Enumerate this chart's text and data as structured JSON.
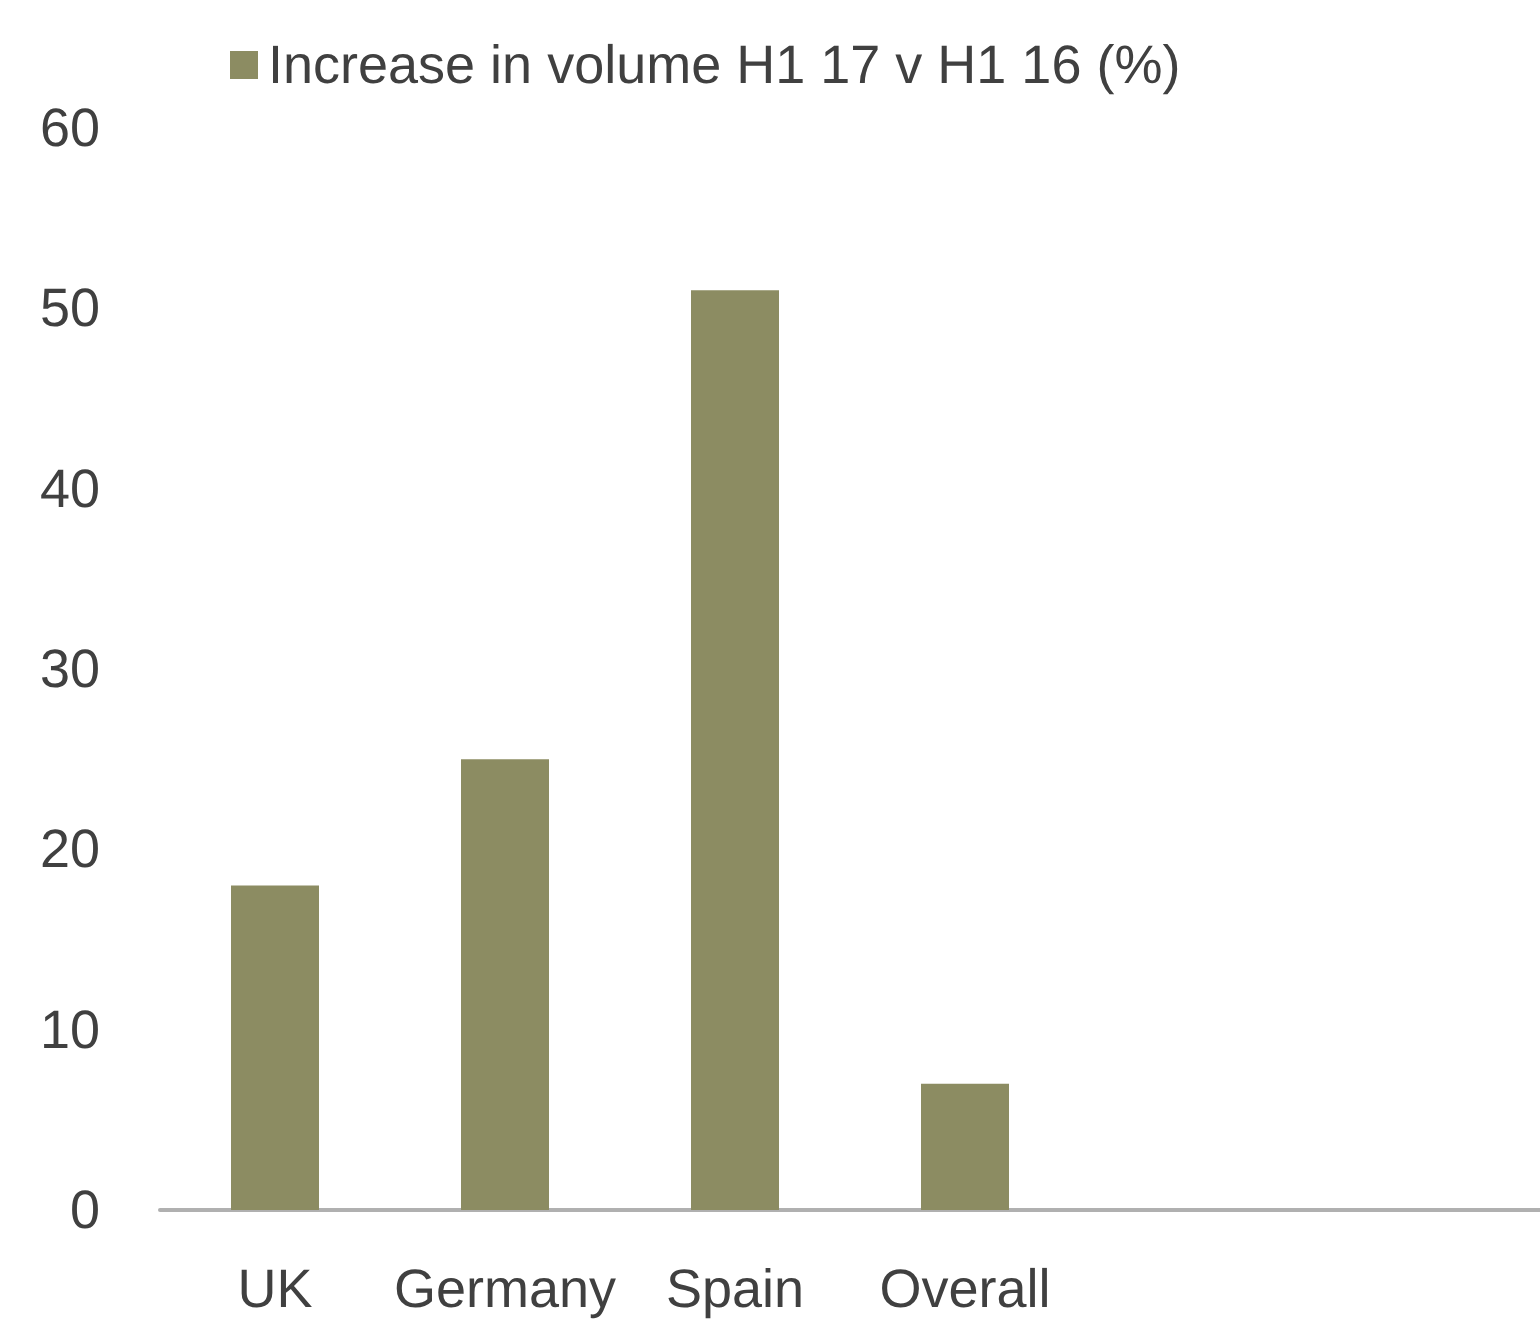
{
  "chart_data": {
    "type": "bar",
    "categories": [
      "UK",
      "Germany",
      "Spain",
      "Overall",
      null,
      null
    ],
    "series": [
      {
        "name": "Increase in volume H1 17 v H1 16 (%)",
        "color": "#8c8c62",
        "values": [
          18,
          25,
          51,
          7,
          null,
          null
        ]
      }
    ],
    "ylim": [
      0,
      60
    ],
    "yticks": [
      0,
      10,
      20,
      30,
      40,
      50,
      60
    ],
    "grid": false,
    "legend": "top"
  }
}
